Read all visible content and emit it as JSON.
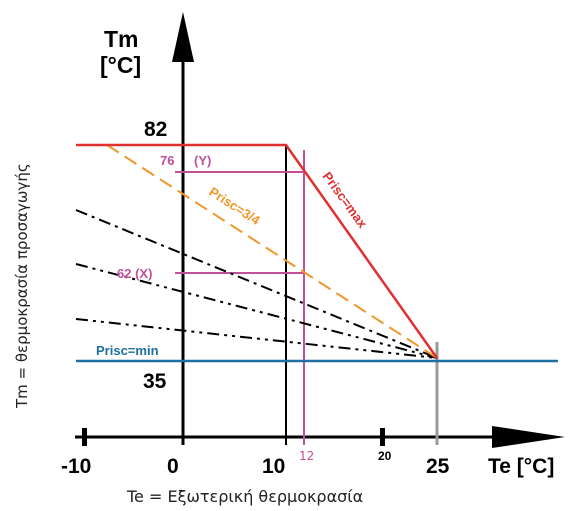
{
  "y_axis": {
    "title_line1": "Tm",
    "title_line2": "[°C]",
    "caption": "Tm = θερμοκρασία προσαγωγής"
  },
  "x_axis": {
    "title": "Te [°C]",
    "caption": "Te = Εξωτερική θερμοκρασία"
  },
  "y_tick_labels": {
    "82": "82",
    "35": "35"
  },
  "x_tick_labels": {
    "m10": "-10",
    "zero": "0",
    "ten": "10",
    "twelve": "12",
    "twenty": "20",
    "twentyfive": "25"
  },
  "annotations": {
    "max": "Prisc=max",
    "three_quarter": "Prisc=3/4",
    "min": "Prisc=min",
    "y76": "76",
    "y_sym": "(Y)",
    "x62": "62 (X)"
  },
  "colors": {
    "max": "#e03030",
    "three_quarter": "#f0962a",
    "min": "#1f6fa0",
    "helper": "#c0509a",
    "axis": "#000000",
    "grey": "#9a9a9a"
  },
  "chart_data": {
    "type": "line",
    "x_unit": "°C",
    "y_unit": "°C",
    "series": [
      {
        "name": "Prisc=max",
        "points": [
          [
            -10,
            82
          ],
          [
            10,
            82
          ],
          [
            25,
            35
          ]
        ]
      },
      {
        "name": "Prisc=3/4",
        "points": [
          [
            -7,
            82
          ],
          [
            25,
            35
          ]
        ]
      },
      {
        "name": "Prisc=min",
        "points": [
          [
            -10,
            35
          ],
          [
            25,
            35
          ],
          [
            37,
            35
          ]
        ]
      }
    ],
    "helper_values": {
      "Y": 76,
      "X": 62,
      "Te": 12
    }
  }
}
